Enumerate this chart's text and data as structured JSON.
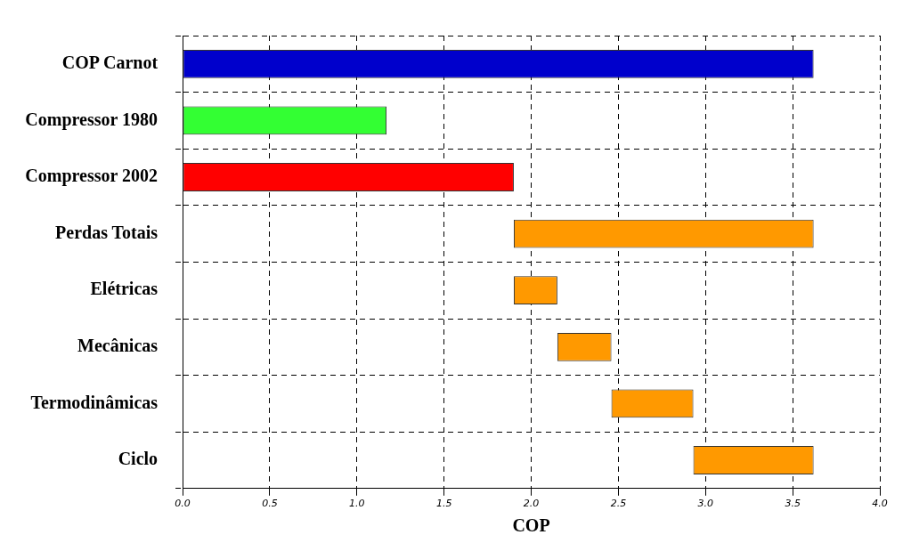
{
  "chart_data": {
    "type": "bar",
    "orientation": "horizontal",
    "xlabel": "COP",
    "categories": [
      "COP Carnot",
      "Compressor 1980",
      "Compressor 2002",
      "Perdas Totais",
      "Elétricas",
      "Mecânicas",
      "Termodinâmicas",
      "Ciclo"
    ],
    "values": [
      3.62,
      1.17,
      1.9,
      1.72,
      0.25,
      0.31,
      0.47,
      0.69
    ],
    "base": [
      0,
      0,
      0,
      1.9,
      1.9,
      2.15,
      2.46,
      2.93
    ],
    "colors": [
      "#0000cc",
      "#33ff33",
      "#ff0000",
      "#ff9900",
      "#ff9900",
      "#ff9900",
      "#ff9900",
      "#ff9900"
    ],
    "xlim": [
      0,
      4
    ],
    "xticks": [
      {
        "value": 0,
        "label": "0.0"
      },
      {
        "value": 0.5,
        "label": "0.5"
      },
      {
        "value": 1,
        "label": "1.0"
      },
      {
        "value": 1.5,
        "label": "1.5"
      },
      {
        "value": 2,
        "label": "2.0"
      },
      {
        "value": 2.5,
        "label": "2.5"
      },
      {
        "value": 3,
        "label": "3.0"
      },
      {
        "value": 3.5,
        "label": "3.5"
      },
      {
        "value": 4,
        "label": "4.0"
      }
    ],
    "grid": true,
    "legend": false
  }
}
